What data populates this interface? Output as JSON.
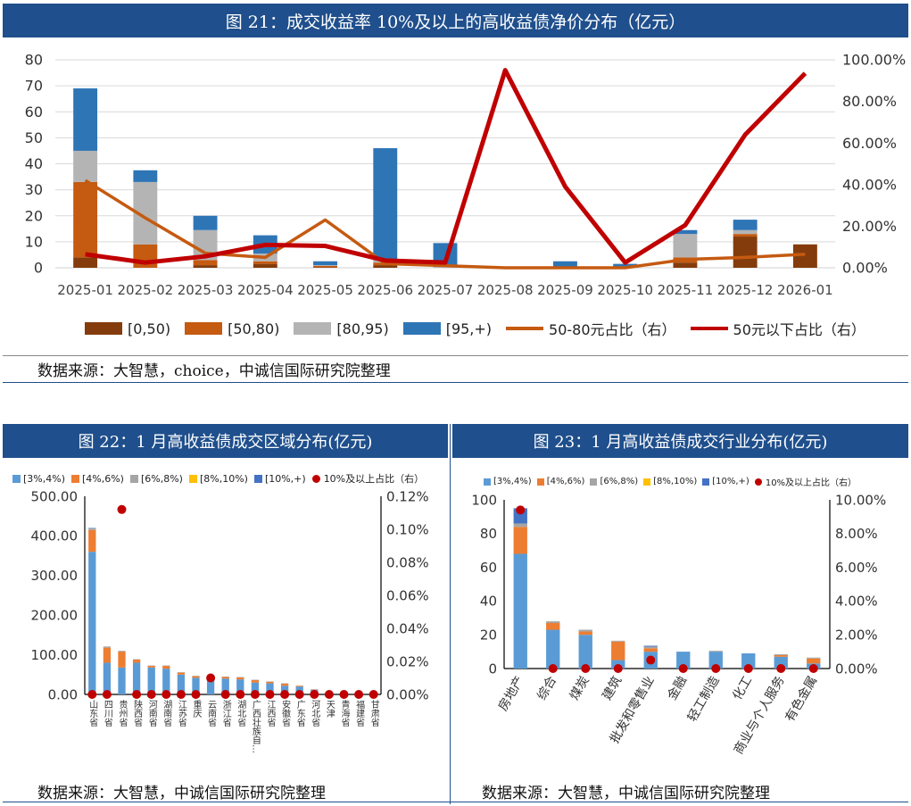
{
  "fig21": {
    "title": "图 21：成交收益率 10%及以上的高收益债净价分布（亿元）",
    "source": "数据来源：大智慧，choice，中诚信国际研究院整理",
    "chart_data": {
      "type": "bar",
      "stacked": true,
      "categories": [
        "2025-01",
        "2025-02",
        "2025-03",
        "2025-04",
        "2025-05",
        "2025-06",
        "2025-07",
        "2025-08",
        "2025-09",
        "2025-10",
        "2025-11",
        "2025-12",
        "2026-01"
      ],
      "y_left_ticks": [
        "0",
        "10",
        "20",
        "30",
        "40",
        "50",
        "60",
        "70",
        "80"
      ],
      "y_right_ticks": [
        "0.00%",
        "20.00%",
        "40.00%",
        "60.00%",
        "80.00%",
        "100.00%"
      ],
      "ylim_left": [
        0,
        80
      ],
      "ylim_right": [
        0,
        100
      ],
      "series": [
        {
          "name": "[0,50)",
          "kind": "bar",
          "color": "#843c0c",
          "values": [
            4,
            0,
            1,
            1.5,
            0.2,
            1,
            0,
            0,
            0,
            0,
            2,
            12,
            9
          ]
        },
        {
          "name": "[50,80)",
          "kind": "bar",
          "color": "#c55a11",
          "values": [
            29,
            9,
            2,
            1,
            0.5,
            1,
            0,
            0,
            0.3,
            0,
            2,
            1,
            0
          ]
        },
        {
          "name": "[80,95)",
          "kind": "bar",
          "color": "#b4b4b4",
          "values": [
            12,
            24,
            11.5,
            3,
            0.3,
            1,
            0.5,
            0,
            0.2,
            0.2,
            9,
            1.5,
            0
          ]
        },
        {
          "name": "[95,+)",
          "kind": "bar",
          "color": "#2e75b6",
          "values": [
            24,
            4.5,
            5.5,
            7,
            1.5,
            43,
            9,
            0,
            2,
            1.3,
            1.5,
            4,
            0
          ]
        },
        {
          "name": "50-80元占比（右）",
          "kind": "line",
          "axis": "right",
          "color": "#c55a11",
          "values": [
            42,
            24,
            7,
            5,
            23,
            2,
            1,
            0,
            0,
            0,
            4,
            5,
            6.5
          ]
        },
        {
          "name": "50元以下占比（右）",
          "kind": "line",
          "axis": "right",
          "color": "#c00000",
          "values": [
            6.5,
            2.5,
            5.5,
            11,
            10.5,
            3.5,
            2.5,
            95,
            39,
            2.5,
            20.5,
            64,
            93.5
          ]
        }
      ]
    }
  },
  "fig22": {
    "title": "图 22：1 月高收益债成交区域分布(亿元)",
    "source": "数据来源：大智慧，中诚信国际研究院整理",
    "chart_data": {
      "type": "bar",
      "stacked": true,
      "categories": [
        "山东省",
        "四川省",
        "贵州省",
        "陕西省",
        "河南省",
        "湖南省",
        "江苏省",
        "重庆",
        "云南省",
        "浙江省",
        "湖北省",
        "广西壮族自…",
        "江西省",
        "安徽省",
        "广东省",
        "河北省",
        "天津",
        "青海省",
        "福建省",
        "甘肃省"
      ],
      "y_left_ticks": [
        "0.00",
        "100.00",
        "200.00",
        "300.00",
        "400.00",
        "500.00"
      ],
      "y_right_ticks": [
        "0.00%",
        "0.02%",
        "0.04%",
        "0.06%",
        "0.08%",
        "0.10%",
        "0.12%"
      ],
      "ylim_left": [
        0,
        500
      ],
      "ylim_right": [
        0,
        0.12
      ],
      "series": [
        {
          "name": "[3%,4%)",
          "kind": "bar",
          "color": "#5b9bd5",
          "values": [
            360,
            80,
            68,
            80,
            68,
            65,
            50,
            42,
            38,
            40,
            38,
            30,
            28,
            22,
            20,
            12,
            3,
            2,
            2,
            1
          ]
        },
        {
          "name": "[4%,6%)",
          "kind": "bar",
          "color": "#ed7d31",
          "values": [
            55,
            38,
            40,
            8,
            4,
            7,
            5,
            4,
            2,
            4,
            5,
            6,
            4,
            5,
            2,
            1,
            0,
            0,
            0,
            0
          ]
        },
        {
          "name": "[6%,8%)",
          "kind": "bar",
          "color": "#a5a5a5",
          "values": [
            4,
            3,
            2,
            1,
            1,
            1,
            1,
            1,
            1,
            1,
            1,
            1,
            1,
            1,
            0,
            0,
            0,
            0,
            0,
            0
          ]
        },
        {
          "name": "[8%,10%)",
          "kind": "bar",
          "color": "#ffc000",
          "values": [
            0,
            0,
            0,
            0,
            0,
            0,
            0,
            0,
            0,
            0,
            0,
            0,
            0,
            0,
            0,
            0,
            0,
            0,
            0,
            0
          ]
        },
        {
          "name": "[10%,+)",
          "kind": "bar",
          "color": "#4472c4",
          "values": [
            1,
            0,
            0,
            0,
            0,
            0,
            0,
            0,
            0,
            0,
            0,
            0,
            0,
            0,
            0,
            0,
            0,
            0,
            0,
            0
          ]
        },
        {
          "name": "10%及以上占比（右）",
          "kind": "scatter",
          "axis": "right",
          "color": "#c00000",
          "values": [
            0,
            0,
            0.112,
            0,
            0,
            0,
            0,
            0,
            0.01,
            0,
            0,
            0,
            0,
            0,
            0,
            0,
            0,
            0,
            0,
            0
          ]
        }
      ]
    }
  },
  "fig23": {
    "title": "图 23：1 月高收益债成交行业分布(亿元)",
    "source": "数据来源：大智慧，中诚信国际研究院整理",
    "chart_data": {
      "type": "bar",
      "stacked": true,
      "categories": [
        "房地产",
        "综合",
        "煤炭",
        "建筑",
        "批发和零售业",
        "金融",
        "轻工制造",
        "化工",
        "商业与个人服务",
        "有色金属"
      ],
      "y_left_ticks": [
        "0",
        "20",
        "40",
        "60",
        "80",
        "100"
      ],
      "y_right_ticks": [
        "0.00%",
        "2.00%",
        "4.00%",
        "6.00%",
        "8.00%",
        "10.00%"
      ],
      "ylim_left": [
        0,
        100
      ],
      "ylim_right": [
        0,
        10
      ],
      "series": [
        {
          "name": "[3%,4%)",
          "kind": "bar",
          "color": "#5b9bd5",
          "values": [
            68,
            23,
            20,
            5,
            10,
            10,
            10,
            9,
            7,
            3
          ]
        },
        {
          "name": "[4%,6%)",
          "kind": "bar",
          "color": "#ed7d31",
          "values": [
            16,
            4,
            2,
            11,
            2,
            0,
            0,
            0,
            1,
            3
          ]
        },
        {
          "name": "[6%,8%)",
          "kind": "bar",
          "color": "#a5a5a5",
          "values": [
            2,
            1,
            1,
            0.5,
            1,
            0,
            0.5,
            0,
            0.5,
            0.5
          ]
        },
        {
          "name": "[8%,10%)",
          "kind": "bar",
          "color": "#ffc000",
          "values": [
            0,
            0,
            0,
            0,
            0,
            0,
            0,
            0,
            0,
            0
          ]
        },
        {
          "name": "[10%,+)",
          "kind": "bar",
          "color": "#4472c4",
          "values": [
            9,
            0,
            0,
            0,
            0.5,
            0,
            0,
            0,
            0,
            0
          ]
        },
        {
          "name": "10%及以上占比（右）",
          "kind": "scatter",
          "axis": "right",
          "color": "#c00000",
          "values": [
            9.4,
            0,
            0,
            0,
            0.5,
            0,
            0,
            0,
            0,
            0
          ]
        }
      ]
    }
  }
}
